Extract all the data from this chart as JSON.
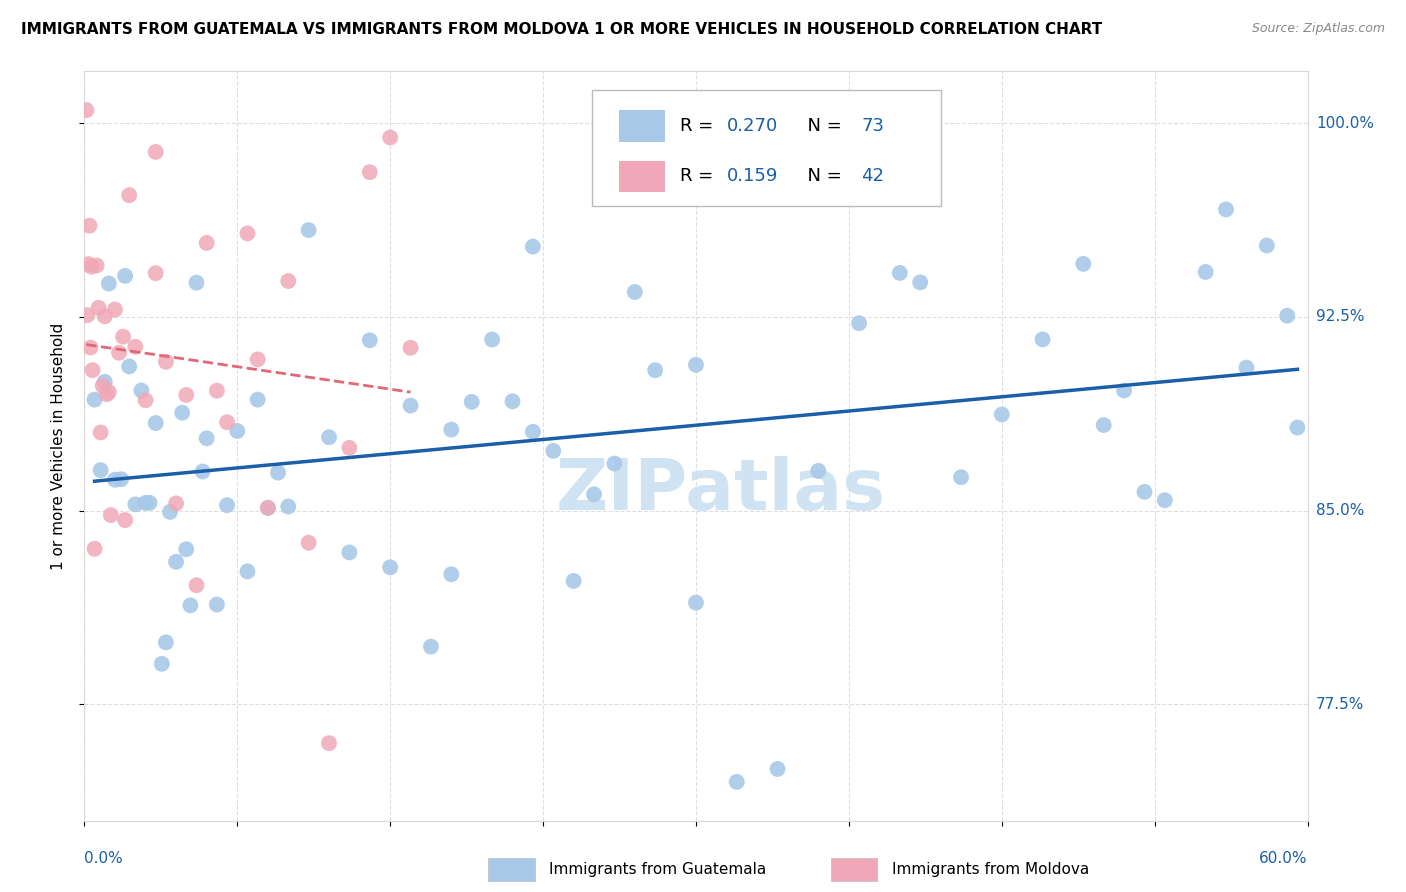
{
  "title": "IMMIGRANTS FROM GUATEMALA VS IMMIGRANTS FROM MOLDOVA 1 OR MORE VEHICLES IN HOUSEHOLD CORRELATION CHART",
  "source": "Source: ZipAtlas.com",
  "R_guatemala": 0.27,
  "N_guatemala": 73,
  "R_moldova": 0.159,
  "N_moldova": 42,
  "guatemala_color": "#a8c8e8",
  "moldova_color": "#f0a8b8",
  "trendline_guatemala_color": "#1a5fa8",
  "trendline_moldova_color": "#e06878",
  "watermark_text": "ZIPatlas",
  "watermark_color": "#c8dff0",
  "xmin": 0.0,
  "xmax": 60.0,
  "ymin": 73.0,
  "ymax": 102.0,
  "ylabel_values": [
    77.5,
    85.0,
    92.5,
    100.0
  ],
  "grid_color": "#d8d8d8",
  "background_color": "#ffffff",
  "title_fontsize": 11,
  "source_fontsize": 9,
  "axis_label_color": "#1a5fa8",
  "ylabel_text": "1 or more Vehicles in Household"
}
